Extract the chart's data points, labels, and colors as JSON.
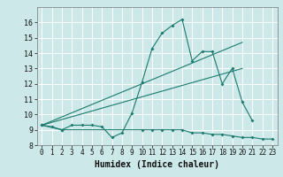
{
  "bg_color": "#cce8e8",
  "grid_color": "#ffffff",
  "line_color": "#1a7a6e",
  "xlabel": "Humidex (Indice chaleur)",
  "xlim": [
    -0.5,
    23.5
  ],
  "ylim": [
    8,
    17
  ],
  "yticks": [
    8,
    9,
    10,
    11,
    12,
    13,
    14,
    15,
    16
  ],
  "xticks": [
    0,
    1,
    2,
    3,
    4,
    5,
    6,
    7,
    8,
    9,
    10,
    11,
    12,
    13,
    14,
    15,
    16,
    17,
    18,
    19,
    20,
    21,
    22,
    23
  ],
  "line1_x": [
    0,
    1,
    2,
    3,
    4,
    5,
    6,
    7,
    8,
    9,
    10,
    11,
    12,
    13,
    14,
    15,
    16,
    17,
    18,
    19,
    20,
    21
  ],
  "line1_y": [
    9.3,
    9.2,
    9.0,
    9.3,
    9.3,
    9.3,
    9.2,
    8.5,
    8.8,
    10.1,
    12.1,
    14.3,
    15.3,
    15.8,
    16.2,
    13.5,
    14.1,
    14.1,
    12.0,
    13.0,
    10.8,
    9.6
  ],
  "line2_x": [
    0,
    2,
    10,
    11,
    12,
    13,
    14,
    15,
    16,
    17,
    18,
    19,
    20,
    21,
    22,
    23
  ],
  "line2_y": [
    9.3,
    9.0,
    9.0,
    9.0,
    9.0,
    9.0,
    9.0,
    8.8,
    8.8,
    8.7,
    8.7,
    8.6,
    8.5,
    8.5,
    8.4,
    8.4
  ],
  "line3_x": [
    0,
    20
  ],
  "line3_y": [
    9.3,
    13.0
  ],
  "line4_x": [
    0,
    20
  ],
  "line4_y": [
    9.3,
    14.7
  ]
}
